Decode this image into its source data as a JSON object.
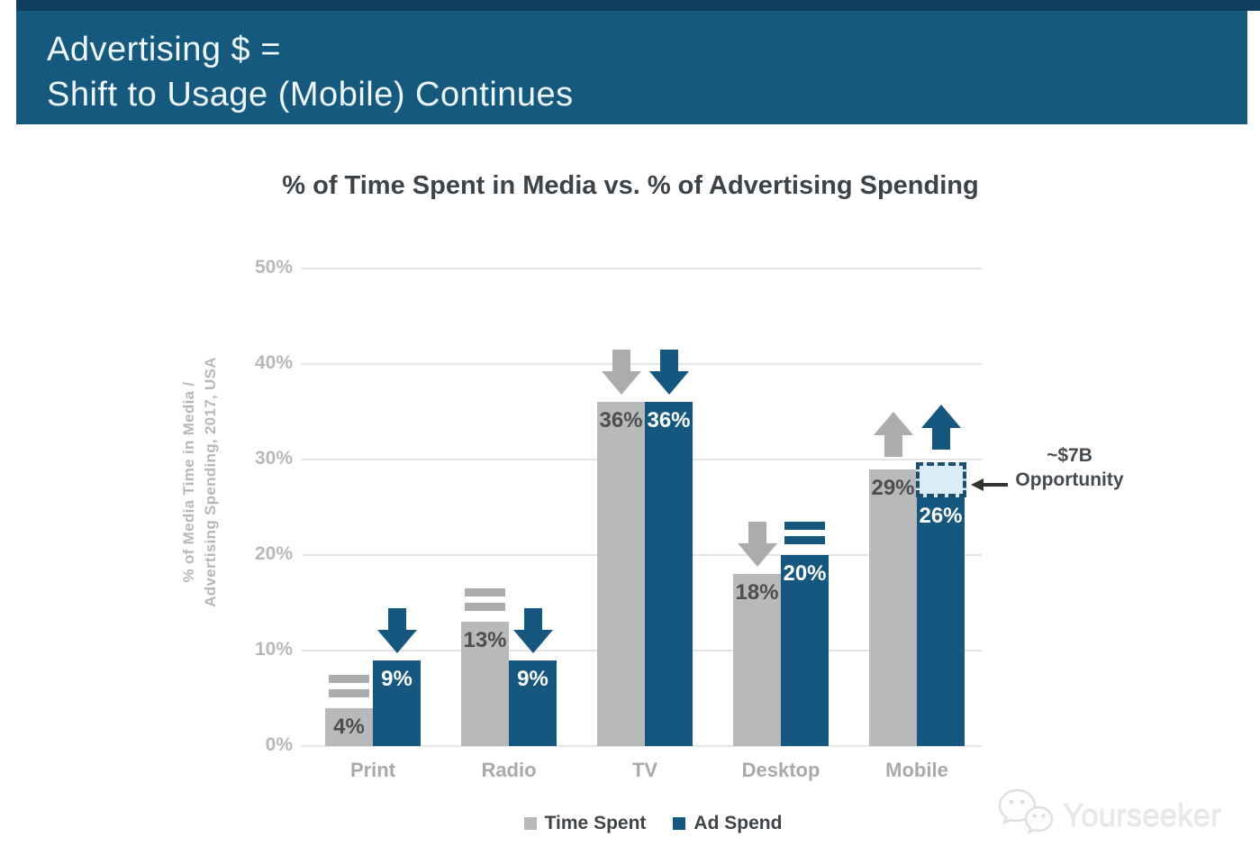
{
  "header": {
    "line1": "Advertising $ =",
    "line2": "Shift to Usage (Mobile) Continues"
  },
  "chart_data": {
    "type": "bar",
    "title": "% of Time Spent in Media vs. % of Advertising Spending",
    "ylabel_lines": [
      "% of Media Time in Media /",
      "Advertising Spending, 2017, USA"
    ],
    "ylim": [
      0,
      50
    ],
    "yticks": [
      {
        "value": 0,
        "label": "0%"
      },
      {
        "value": 10,
        "label": "10%"
      },
      {
        "value": 20,
        "label": "20%"
      },
      {
        "value": 30,
        "label": "30%"
      },
      {
        "value": 40,
        "label": "40%"
      },
      {
        "value": 50,
        "label": "50%"
      }
    ],
    "grid": "horizontal-light",
    "legend_position": "bottom-center",
    "categories": [
      "Print",
      "Radio",
      "TV",
      "Desktop",
      "Mobile"
    ],
    "series": [
      {
        "name": "Time Spent",
        "values": [
          4,
          13,
          36,
          18,
          29
        ],
        "labels": [
          "4%",
          "13%",
          "36%",
          "18%",
          "29%"
        ],
        "trend": [
          "equal",
          "equal",
          "down",
          "down",
          "up"
        ]
      },
      {
        "name": "Ad Spend",
        "values": [
          9,
          9,
          36,
          20,
          26
        ],
        "labels": [
          "9%",
          "9%",
          "36%",
          "20%",
          "26%"
        ],
        "trend": [
          "down",
          "down",
          "down",
          "equal",
          "up"
        ]
      }
    ],
    "annotation": {
      "line1": "~$7B",
      "line2": "Opportunity",
      "points_to": "Mobile Ad Spend dashed gap box",
      "box_range": [
        26,
        29.7
      ]
    }
  },
  "colors": {
    "banner_strip": "#0f3e5c",
    "banner": "#16597f",
    "banner_text": "#eef7fc",
    "title_text": "#3d4449",
    "bar_gray": "#b7b9ba",
    "bar_blue": "#15577f",
    "trend_gray": "#aaacad",
    "trend_blue": "#15577f",
    "label_on_gray": "#4c4e50",
    "label_on_blue": "#ffffff",
    "axis_text": "#b6b8ba",
    "category_text": "#a7aaac",
    "grid_line": "#e3e4e4",
    "opportunity_fill": "#d9ecf7",
    "opportunity_border": "#1d4e6e",
    "annotation_text": "#454a4e",
    "legend_text": "#3f4448"
  },
  "watermark": {
    "text": "Yourseeker",
    "icon": "wechat-chat-bubbles-icon"
  }
}
